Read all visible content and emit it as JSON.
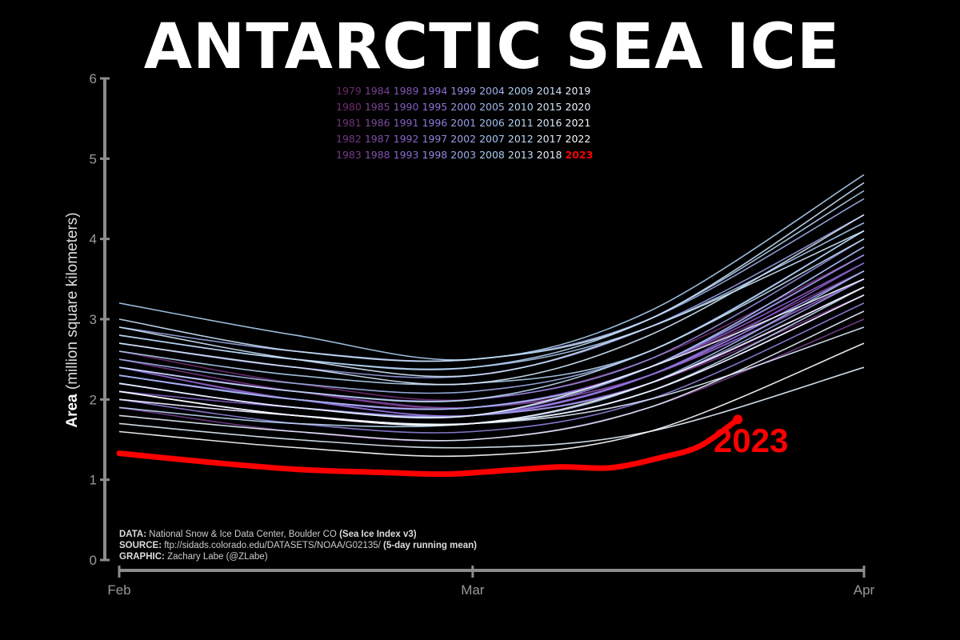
{
  "title": "ANTARCTIC SEA ICE",
  "ylabel_bold": "Area",
  "ylabel_rest": "(million square kilometers)",
  "highlight_label": "2023",
  "credits": {
    "data_key": "DATA:",
    "data_val": "National Snow & Ice Data Center, Boulder CO",
    "data_extra": "(Sea Ice Index v3)",
    "source_key": "SOURCE:",
    "source_val": "ftp://sidads.colorado.edu/DATASETS/NOAA/G02135/",
    "source_extra": "(5-day running mean)",
    "graphic_key": "GRAPHIC:",
    "graphic_val": "Zachary Labe (@ZLabe)"
  },
  "colors": {
    "background": "#000000",
    "highlight": "#ff0000",
    "axis": "#8c8c8c",
    "palette_start": "#6e2a6a",
    "palette_mid": "#8a6ad8",
    "palette_late": "#a8cdf0",
    "palette_end": "#ffffff"
  },
  "chart_data": {
    "type": "line",
    "title": "ANTARCTIC SEA ICE",
    "ylabel": "Area (million square kilometers)",
    "ylim": [
      0,
      6
    ],
    "yticks": [
      "0",
      "1",
      "2",
      "3",
      "4",
      "5",
      "6"
    ],
    "xticks": [
      "Feb",
      "Mar",
      "Apr"
    ],
    "xlim": [
      "Feb 1",
      "Apr 1"
    ],
    "grid": false,
    "legend_position": "top-center",
    "legend_years": [
      "1979",
      "1984",
      "1989",
      "1994",
      "1999",
      "2004",
      "2009",
      "2014",
      "2019",
      "1980",
      "1985",
      "1990",
      "1995",
      "2000",
      "2005",
      "2010",
      "2015",
      "2020",
      "1981",
      "1986",
      "1991",
      "1996",
      "2001",
      "2006",
      "2011",
      "2016",
      "2021",
      "1982",
      "1987",
      "1992",
      "1997",
      "2002",
      "2007",
      "2012",
      "2017",
      "2022",
      "1983",
      "1988",
      "1993",
      "1998",
      "2003",
      "2008",
      "2013",
      "2018",
      "2023"
    ],
    "x_days": [
      1,
      15,
      29,
      43,
      60
    ],
    "series": [
      {
        "name": "1979",
        "values": [
          2.3,
          2.0,
          1.9,
          2.3,
          3.5
        ]
      },
      {
        "name": "1980",
        "values": [
          2.6,
          2.2,
          2.0,
          2.5,
          3.8
        ]
      },
      {
        "name": "1981",
        "values": [
          2.4,
          2.0,
          1.8,
          2.2,
          3.3
        ]
      },
      {
        "name": "1982",
        "values": [
          2.5,
          2.1,
          1.9,
          2.4,
          3.6
        ]
      },
      {
        "name": "1983",
        "values": [
          2.2,
          1.9,
          1.8,
          2.2,
          3.4
        ]
      },
      {
        "name": "1984",
        "values": [
          1.9,
          1.6,
          1.5,
          1.9,
          3.0
        ]
      },
      {
        "name": "1985",
        "values": [
          2.3,
          2.0,
          1.9,
          2.4,
          3.7
        ]
      },
      {
        "name": "1986",
        "values": [
          2.4,
          2.1,
          1.9,
          2.3,
          3.5
        ]
      },
      {
        "name": "1987",
        "values": [
          2.3,
          2.0,
          1.8,
          2.3,
          3.6
        ]
      },
      {
        "name": "1988",
        "values": [
          2.1,
          1.8,
          1.7,
          2.1,
          3.3
        ]
      },
      {
        "name": "1989",
        "values": [
          2.3,
          2.0,
          1.9,
          2.4,
          3.7
        ]
      },
      {
        "name": "1990",
        "values": [
          2.2,
          1.9,
          1.8,
          2.3,
          3.5
        ]
      },
      {
        "name": "1991",
        "values": [
          2.1,
          1.9,
          1.8,
          2.2,
          3.4
        ]
      },
      {
        "name": "1992",
        "values": [
          2.2,
          1.9,
          1.8,
          2.3,
          3.7
        ]
      },
      {
        "name": "1993",
        "values": [
          2.0,
          1.8,
          1.7,
          2.1,
          3.3
        ]
      },
      {
        "name": "1994",
        "values": [
          2.4,
          2.0,
          1.9,
          2.4,
          3.8
        ]
      },
      {
        "name": "1995",
        "values": [
          2.3,
          2.0,
          1.8,
          2.3,
          3.6
        ]
      },
      {
        "name": "1996",
        "values": [
          2.2,
          1.9,
          1.8,
          2.3,
          3.6
        ]
      },
      {
        "name": "1997",
        "values": [
          2.0,
          1.7,
          1.6,
          2.0,
          3.2
        ]
      },
      {
        "name": "1998",
        "values": [
          2.3,
          2.0,
          1.9,
          2.4,
          3.9
        ]
      },
      {
        "name": "1999",
        "values": [
          2.4,
          2.1,
          2.0,
          2.5,
          4.0
        ]
      },
      {
        "name": "2000",
        "values": [
          2.2,
          1.9,
          1.8,
          2.4,
          3.8
        ]
      },
      {
        "name": "2001",
        "values": [
          2.7,
          2.4,
          2.3,
          2.9,
          4.3
        ]
      },
      {
        "name": "2002",
        "values": [
          2.2,
          1.9,
          1.8,
          2.2,
          3.5
        ]
      },
      {
        "name": "2003",
        "values": [
          2.9,
          2.6,
          2.5,
          3.0,
          4.5
        ]
      },
      {
        "name": "2004",
        "values": [
          2.5,
          2.2,
          2.1,
          2.6,
          4.1
        ]
      },
      {
        "name": "2005",
        "values": [
          2.3,
          2.0,
          1.9,
          2.4,
          3.9
        ]
      },
      {
        "name": "2006",
        "values": [
          2.1,
          1.8,
          1.7,
          2.2,
          3.6
        ]
      },
      {
        "name": "2007",
        "values": [
          2.8,
          2.5,
          2.4,
          2.9,
          4.2
        ]
      },
      {
        "name": "2008",
        "values": [
          3.2,
          2.8,
          2.5,
          3.1,
          4.8
        ]
      },
      {
        "name": "2009",
        "values": [
          2.6,
          2.3,
          2.2,
          2.6,
          4.1
        ]
      },
      {
        "name": "2010",
        "values": [
          2.8,
          2.5,
          2.4,
          3.0,
          4.6
        ]
      },
      {
        "name": "2011",
        "values": [
          1.9,
          1.7,
          1.7,
          2.1,
          3.4
        ]
      },
      {
        "name": "2012",
        "values": [
          2.4,
          2.1,
          2.0,
          2.6,
          4.0
        ]
      },
      {
        "name": "2013",
        "values": [
          3.0,
          2.6,
          2.5,
          3.0,
          4.7
        ]
      },
      {
        "name": "2014",
        "values": [
          2.9,
          2.5,
          2.3,
          2.9,
          4.1
        ]
      },
      {
        "name": "2015",
        "values": [
          2.7,
          2.4,
          2.2,
          2.8,
          4.3
        ]
      },
      {
        "name": "2016",
        "values": [
          2.1,
          1.8,
          1.7,
          2.0,
          2.9
        ]
      },
      {
        "name": "2017",
        "values": [
          1.7,
          1.5,
          1.4,
          1.6,
          2.4
        ]
      },
      {
        "name": "2018",
        "values": [
          1.8,
          1.6,
          1.5,
          1.9,
          3.1
        ]
      },
      {
        "name": "2019",
        "values": [
          2.2,
          1.9,
          1.8,
          2.4,
          3.5
        ]
      },
      {
        "name": "2020",
        "values": [
          2.0,
          1.8,
          1.7,
          2.1,
          3.3
        ]
      },
      {
        "name": "2021",
        "values": [
          2.1,
          1.8,
          1.7,
          2.2,
          3.4
        ]
      },
      {
        "name": "2022",
        "values": [
          1.6,
          1.4,
          1.3,
          1.6,
          2.7
        ]
      },
      {
        "name": "2023",
        "highlight": true,
        "x_days": [
          1,
          8,
          15,
          22,
          27,
          32,
          36,
          40,
          44,
          47,
          50
        ],
        "values": [
          1.33,
          1.22,
          1.13,
          1.09,
          1.07,
          1.12,
          1.16,
          1.15,
          1.28,
          1.42,
          1.75
        ]
      }
    ]
  }
}
